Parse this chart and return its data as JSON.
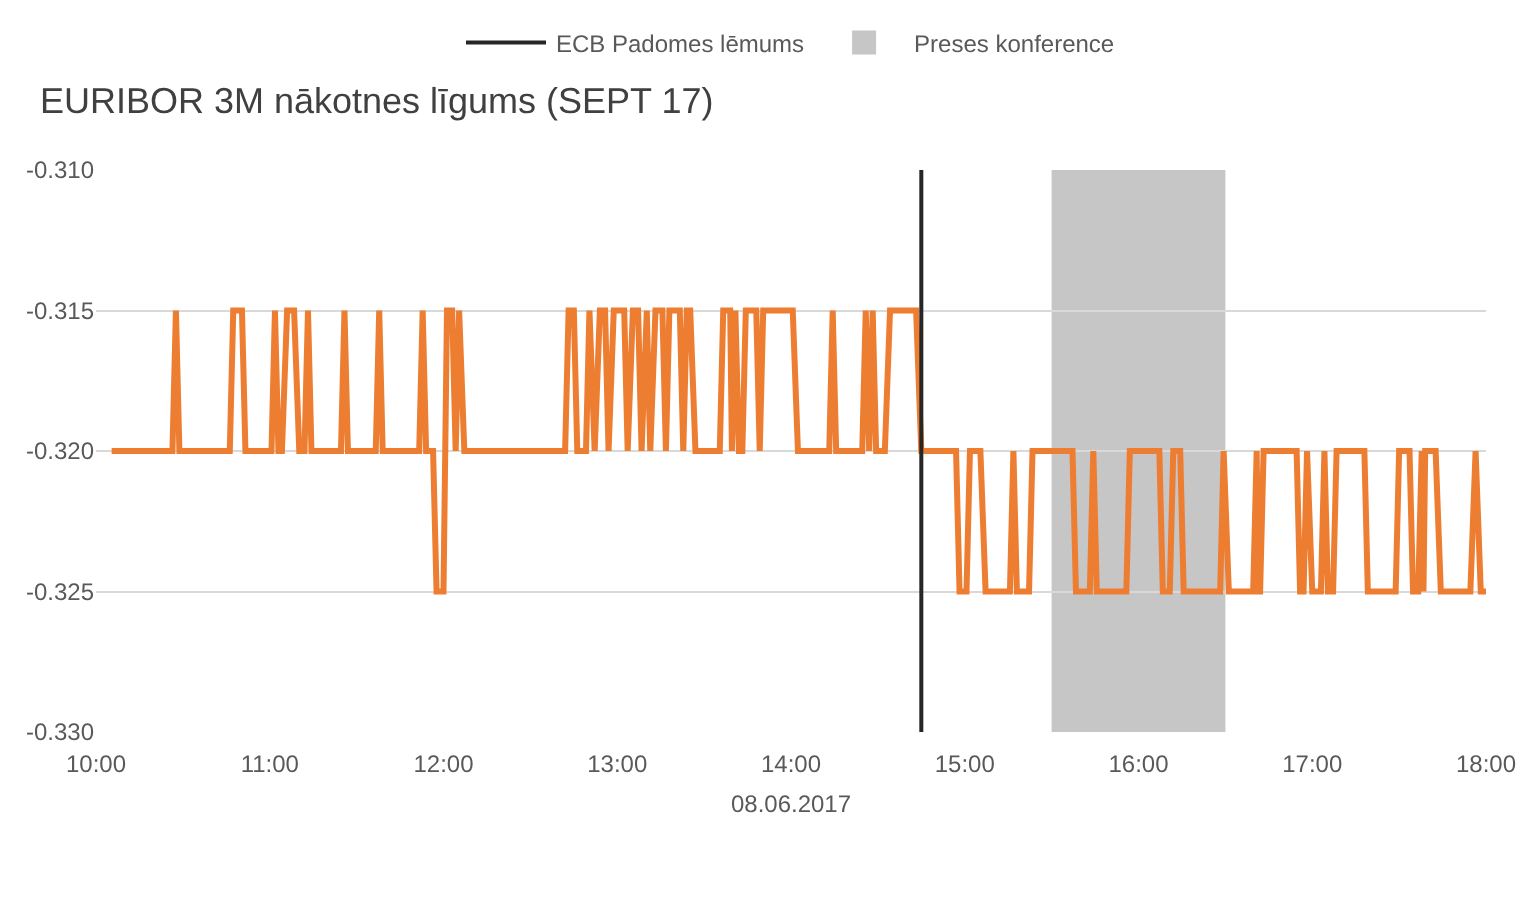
{
  "chart_data": {
    "type": "line",
    "title": "EURIBOR 3M nākotnes līgums (SEPT 17)",
    "xlabel": "08.06.2017",
    "series": [
      {
        "color": "#ed7d31",
        "x": [
          10.09,
          10.44,
          10.46,
          10.48,
          10.77,
          10.79,
          10.84,
          10.86,
          11.01,
          11.03,
          11.05,
          11.07,
          11.1,
          11.14,
          11.17,
          11.2,
          11.22,
          11.24,
          11.41,
          11.43,
          11.45,
          11.61,
          11.63,
          11.65,
          11.86,
          11.88,
          11.9,
          11.94,
          11.96,
          12.0,
          12.02,
          12.05,
          12.07,
          12.09,
          12.12,
          12.7,
          12.72,
          12.75,
          12.77,
          12.82,
          12.84,
          12.87,
          12.9,
          12.93,
          12.95,
          12.98,
          13.04,
          13.06,
          13.09,
          13.12,
          13.14,
          13.17,
          13.19,
          13.22,
          13.26,
          13.28,
          13.3,
          13.36,
          13.38,
          13.4,
          13.42,
          13.45,
          13.59,
          13.61,
          13.65,
          13.66,
          13.68,
          13.7,
          13.72,
          13.74,
          13.8,
          13.82,
          13.84,
          14.01,
          14.04,
          14.22,
          14.24,
          14.26,
          14.41,
          14.43,
          14.45,
          14.47,
          14.49,
          14.54,
          14.57,
          14.72,
          14.75,
          14.95,
          14.97,
          15.01,
          15.03,
          15.09,
          15.12,
          15.26,
          15.28,
          15.3,
          15.37,
          15.39,
          15.62,
          15.64,
          15.72,
          15.74,
          15.76,
          15.93,
          15.95,
          16.12,
          16.14,
          16.18,
          16.2,
          16.24,
          16.26,
          16.47,
          16.49,
          16.52,
          16.66,
          16.68,
          16.69,
          16.7,
          16.72,
          16.91,
          16.93,
          16.95,
          16.97,
          17.0,
          17.05,
          17.07,
          17.09,
          17.12,
          17.14,
          17.3,
          17.32,
          17.48,
          17.5,
          17.56,
          17.58,
          17.61,
          17.63,
          17.64,
          17.65,
          17.71,
          17.74,
          17.91,
          17.94,
          17.97,
          18.0
        ],
        "values": [
          -0.32,
          -0.32,
          -0.315,
          -0.32,
          -0.32,
          -0.315,
          -0.315,
          -0.32,
          -0.32,
          -0.315,
          -0.32,
          -0.32,
          -0.315,
          -0.315,
          -0.32,
          -0.32,
          -0.315,
          -0.32,
          -0.32,
          -0.315,
          -0.32,
          -0.32,
          -0.315,
          -0.32,
          -0.32,
          -0.315,
          -0.32,
          -0.32,
          -0.325,
          -0.325,
          -0.315,
          -0.315,
          -0.32,
          -0.315,
          -0.32,
          -0.32,
          -0.315,
          -0.315,
          -0.32,
          -0.32,
          -0.315,
          -0.32,
          -0.315,
          -0.315,
          -0.32,
          -0.315,
          -0.315,
          -0.32,
          -0.315,
          -0.315,
          -0.32,
          -0.315,
          -0.32,
          -0.315,
          -0.315,
          -0.32,
          -0.315,
          -0.315,
          -0.32,
          -0.315,
          -0.315,
          -0.32,
          -0.32,
          -0.315,
          -0.315,
          -0.32,
          -0.315,
          -0.32,
          -0.32,
          -0.315,
          -0.315,
          -0.32,
          -0.315,
          -0.315,
          -0.32,
          -0.32,
          -0.315,
          -0.32,
          -0.32,
          -0.315,
          -0.32,
          -0.315,
          -0.32,
          -0.32,
          -0.315,
          -0.315,
          -0.32,
          -0.32,
          -0.325,
          -0.325,
          -0.32,
          -0.32,
          -0.325,
          -0.325,
          -0.32,
          -0.325,
          -0.325,
          -0.32,
          -0.32,
          -0.325,
          -0.325,
          -0.32,
          -0.325,
          -0.325,
          -0.32,
          -0.32,
          -0.325,
          -0.325,
          -0.32,
          -0.32,
          -0.325,
          -0.325,
          -0.32,
          -0.325,
          -0.325,
          -0.32,
          -0.325,
          -0.325,
          -0.32,
          -0.32,
          -0.325,
          -0.325,
          -0.32,
          -0.325,
          -0.325,
          -0.32,
          -0.325,
          -0.325,
          -0.32,
          -0.32,
          -0.325,
          -0.325,
          -0.32,
          -0.32,
          -0.325,
          -0.325,
          -0.32,
          -0.325,
          -0.32,
          -0.32,
          -0.325,
          -0.325,
          -0.32,
          -0.325,
          -0.325
        ]
      }
    ],
    "xlim": [
      10,
      18
    ],
    "xticks": [
      {
        "value": 10,
        "label": "10:00"
      },
      {
        "value": 11,
        "label": "11:00"
      },
      {
        "value": 12,
        "label": "12:00"
      },
      {
        "value": 13,
        "label": "13:00"
      },
      {
        "value": 14,
        "label": "14:00"
      },
      {
        "value": 15,
        "label": "15:00"
      },
      {
        "value": 16,
        "label": "16:00"
      },
      {
        "value": 17,
        "label": "17:00"
      },
      {
        "value": 18,
        "label": "18:00"
      }
    ],
    "ylim": [
      -0.33,
      -0.31
    ],
    "yticks": [
      {
        "value": -0.33,
        "label": "-0.330"
      },
      -0.325,
      {
        "value": -0.32,
        "label": "-0.320"
      },
      -0.315,
      {
        "value": -0.31,
        "label": "-0.310"
      }
    ],
    "ref_lines": [
      {
        "axis": "x",
        "value": 14.75,
        "label": "ECB Padomes lēmums",
        "color": "#262626"
      }
    ],
    "bands": [
      {
        "axis": "x",
        "from": 15.5,
        "to": 16.5,
        "label": "Preses konference",
        "color": "#c6c6c6"
      }
    ],
    "grid": "y",
    "legend": "top"
  }
}
